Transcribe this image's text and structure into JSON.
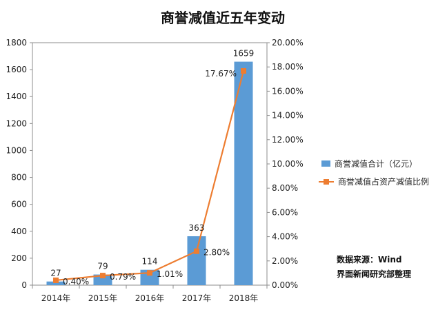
{
  "chart_data": {
    "type": "bar",
    "title": "商誉减值近五年变动",
    "categories": [
      "2014年",
      "2015年",
      "2016年",
      "2017年",
      "2018年"
    ],
    "series": [
      {
        "name": "商誉减值合计（亿元）",
        "type": "bar",
        "axis": "left",
        "values": [
          27,
          79,
          114,
          363,
          1659
        ],
        "labels": [
          "27",
          "79",
          "114",
          "363",
          "1659"
        ],
        "color": "#5B9BD5"
      },
      {
        "name": "商誉减值占资产减值比例",
        "type": "line",
        "axis": "right",
        "values": [
          0.4,
          0.79,
          1.01,
          2.8,
          17.67
        ],
        "labels": [
          "0.40%",
          "0.79%",
          "1.01%",
          "2.80%",
          "17.67%"
        ],
        "color": "#ED7D31"
      }
    ],
    "y_left": {
      "min": 0,
      "max": 1800,
      "ticks": [
        "0",
        "200",
        "400",
        "600",
        "800",
        "1000",
        "1200",
        "1400",
        "1600",
        "1800"
      ]
    },
    "y_right": {
      "min": 0,
      "max": 20,
      "ticks": [
        "0.00%",
        "2.00%",
        "4.00%",
        "6.00%",
        "8.00%",
        "10.00%",
        "12.00%",
        "14.00%",
        "16.00%",
        "18.00%",
        "20.00%"
      ]
    },
    "grid": false,
    "legend_position": "right",
    "annotation": [
      "数据来源：Wind",
      "界面新闻研究部整理"
    ]
  }
}
